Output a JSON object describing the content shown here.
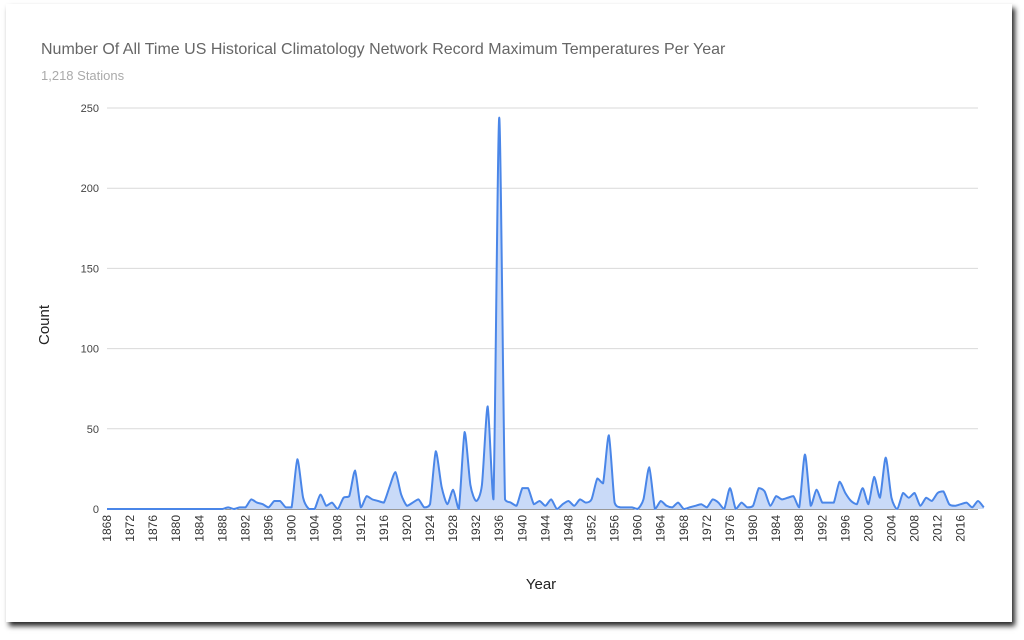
{
  "chart_data": {
    "type": "area",
    "title": "Number Of All Time US Historical Climatology Network Record Maximum Temperatures Per Year",
    "subtitle": "1,218 Stations",
    "xlabel": "Year",
    "ylabel": "Count",
    "ylim": [
      0,
      250
    ],
    "yticks": [
      "0",
      "50",
      "100",
      "150",
      "200",
      "250"
    ],
    "xticks": [
      "1868",
      "1872",
      "1876",
      "1880",
      "1884",
      "1888",
      "1892",
      "1896",
      "1900",
      "1904",
      "1908",
      "1912",
      "1916",
      "1920",
      "1924",
      "1928",
      "1932",
      "1936",
      "1940",
      "1944",
      "1948",
      "1952",
      "1956",
      "1960",
      "1964",
      "1968",
      "1972",
      "1976",
      "1980",
      "1984",
      "1988",
      "1992",
      "1996",
      "2000",
      "2004",
      "2008",
      "2012",
      "2016"
    ],
    "x_start": 1868,
    "x_end": 2019,
    "grid": true,
    "line_color": "#4a86e8",
    "fill_color": "#c9daf8",
    "series": [
      {
        "values": [
          0,
          0,
          0,
          0,
          0,
          0,
          0,
          0,
          0,
          0,
          0,
          0,
          0,
          0,
          0,
          0,
          0,
          0,
          0,
          0,
          0,
          1,
          0,
          1,
          1,
          6,
          4,
          3,
          1,
          5,
          5,
          1,
          1,
          31,
          7,
          0,
          0,
          9,
          2,
          4,
          0,
          7,
          8,
          24,
          1,
          8,
          6,
          5,
          4,
          14,
          23,
          9,
          2,
          4,
          6,
          1,
          3,
          36,
          14,
          3,
          12,
          0,
          48,
          15,
          5,
          15,
          64,
          6,
          244,
          6,
          4,
          2,
          13,
          13,
          3,
          5,
          2,
          6,
          0,
          3,
          5,
          2,
          6,
          4,
          6,
          19,
          16,
          46,
          4,
          1,
          1,
          1,
          0,
          6,
          26,
          0,
          5,
          2,
          1,
          4,
          0,
          1,
          2,
          3,
          1,
          6,
          4,
          0,
          13,
          0,
          4,
          1,
          2,
          13,
          11,
          2,
          8,
          6,
          7,
          8,
          1,
          34,
          2,
          12,
          4,
          4,
          4,
          17,
          10,
          5,
          3,
          13,
          3,
          20,
          7,
          32,
          7,
          0,
          10,
          7,
          10,
          2,
          7,
          5,
          10,
          11,
          3,
          2,
          3,
          4,
          1,
          5,
          1
        ]
      }
    ]
  }
}
